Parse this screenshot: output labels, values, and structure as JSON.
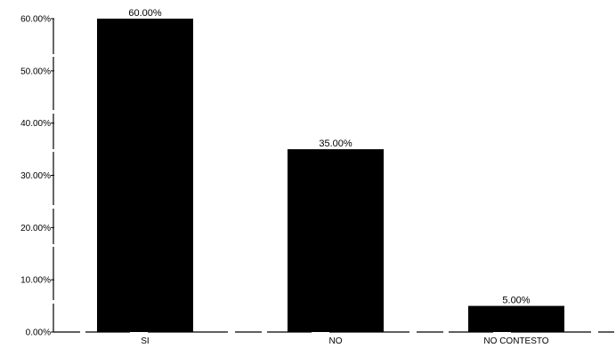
{
  "chart_data": {
    "type": "bar",
    "title": "",
    "xlabel": "",
    "ylabel": "",
    "categories": [
      "SI",
      "NO",
      "NO CONTESTO"
    ],
    "values": [
      60.0,
      35.0,
      5.0
    ],
    "value_labels": [
      "60.00%",
      "35.00%",
      "5.00%"
    ],
    "ylim": [
      0,
      60
    ],
    "yticks": [
      0,
      10,
      20,
      30,
      40,
      50,
      60
    ],
    "ytick_labels": [
      "0.00%",
      "10.00%",
      "20.00%",
      "30.00%",
      "40.00%",
      "50.00%",
      "60.00%"
    ],
    "grid": false,
    "legend": "none",
    "colors": {
      "bar": "#000000",
      "axis": "#000000",
      "background": "#ffffff"
    }
  }
}
